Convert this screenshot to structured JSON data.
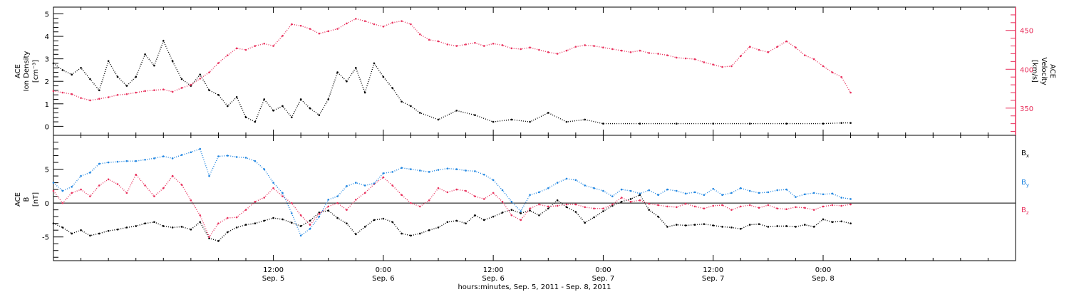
{
  "figure": {
    "xlabel": "hours:minutes, Sep. 5, 2011 - Sep. 8, 2011"
  },
  "chart_data": [
    {
      "type": "scatter",
      "panel": "top",
      "title": "",
      "xlabel": "hours:minutes, Sep. 5, 2011 - Sep. 8, 2011",
      "x_unit": "hours since 2011-09-05 00:00",
      "xlim": [
        -12.0,
        93.0
      ],
      "x_ticks": [
        {
          "value": 12,
          "time": "12:00",
          "date": "Sep. 5"
        },
        {
          "value": 24,
          "time": "0:00",
          "date": "Sep. 6"
        },
        {
          "value": 36,
          "time": "12:00",
          "date": "Sep. 6"
        },
        {
          "value": 48,
          "time": "0:00",
          "date": "Sep. 7"
        },
        {
          "value": 60,
          "time": "12:00",
          "date": "Sep. 7"
        },
        {
          "value": 72,
          "time": "0:00",
          "date": "Sep. 8"
        }
      ],
      "y_left": {
        "label_lines": [
          "ACE",
          "Ion Density",
          "[cm⁻³]"
        ],
        "ylim": [
          -0.4,
          5.3
        ],
        "ticks": [
          0,
          1,
          2,
          3,
          4,
          5
        ],
        "tick_labels": [
          "0",
          "1",
          "2",
          "3",
          "4",
          "5"
        ],
        "color": "#000000"
      },
      "y_right": {
        "label_lines": [
          "ACE",
          "Velocity",
          "[km/s]"
        ],
        "ylim": [
          315,
          480
        ],
        "ticks": [
          350,
          400,
          450
        ],
        "tick_labels": [
          "350",
          "400",
          "450"
        ],
        "color": "#e8305c"
      },
      "series": [
        {
          "color": "#000000",
          "axis": "left",
          "marker": "dot",
          "x": [
            -12.0,
            -11.0,
            -10.0,
            -9.0,
            -8.0,
            -7.0,
            -6.0,
            -5.0,
            -4.0,
            -3.0,
            -2.0,
            -1.0,
            0.0,
            1.0,
            2.0,
            3.0,
            4.0,
            5.0,
            6.0,
            7.0,
            8.0,
            9.0,
            10.0,
            11.0,
            12.0,
            13.0,
            14.0,
            15.0,
            16.0,
            17.0,
            18.0,
            19.0,
            20.0,
            21.0,
            22.0,
            23.0,
            24.0,
            25.0,
            26.0,
            27.0,
            28.0,
            30.0,
            32.0,
            34.0,
            36.0,
            38.0,
            40.0,
            42.0,
            44.0,
            46.0,
            48.0,
            52.0,
            56.0,
            60.0,
            64.0,
            68.0,
            72.0,
            74.0,
            75.0
          ],
          "y": [
            2.8,
            2.5,
            2.3,
            2.6,
            2.1,
            1.6,
            2.9,
            2.2,
            1.8,
            2.2,
            3.2,
            2.7,
            3.8,
            2.9,
            2.1,
            1.8,
            2.3,
            1.6,
            1.4,
            0.9,
            1.3,
            0.4,
            0.2,
            1.2,
            0.7,
            0.9,
            0.4,
            1.2,
            0.8,
            0.5,
            1.2,
            2.4,
            2.0,
            2.6,
            1.5,
            2.8,
            2.2,
            1.7,
            1.1,
            0.9,
            0.6,
            0.3,
            0.7,
            0.5,
            0.2,
            0.3,
            0.2,
            0.6,
            0.2,
            0.3,
            0.12,
            0.12,
            0.12,
            0.12,
            0.12,
            0.12,
            0.12,
            0.15,
            0.15
          ]
        },
        {
          "color": "#e8305c",
          "axis": "right",
          "marker": "dot",
          "x": [
            -12.0,
            -11.0,
            -10.0,
            -9.0,
            -8.0,
            -7.0,
            -6.0,
            -5.0,
            -4.0,
            -3.0,
            -2.0,
            -1.0,
            0.0,
            1.0,
            2.0,
            3.0,
            4.0,
            5.0,
            6.0,
            7.0,
            8.0,
            9.0,
            10.0,
            11.0,
            12.0,
            13.0,
            14.0,
            15.0,
            16.0,
            17.0,
            18.0,
            19.0,
            20.0,
            21.0,
            22.0,
            23.0,
            24.0,
            25.0,
            26.0,
            27.0,
            28.0,
            29.0,
            30.0,
            31.0,
            32.0,
            33.0,
            34.0,
            35.0,
            36.0,
            37.0,
            38.0,
            39.0,
            40.0,
            41.0,
            42.0,
            43.0,
            44.0,
            45.0,
            46.0,
            47.0,
            48.0,
            49.0,
            50.0,
            51.0,
            52.0,
            53.0,
            54.0,
            55.0,
            56.0,
            57.0,
            58.0,
            59.0,
            60.0,
            61.0,
            62.0,
            63.0,
            64.0,
            65.0,
            66.0,
            67.0,
            68.0,
            69.0,
            70.0,
            71.0,
            72.0,
            73.0,
            74.0,
            75.0
          ],
          "y": [
            372,
            370,
            368,
            363,
            360,
            362,
            364,
            367,
            368,
            370,
            372,
            373,
            374,
            371,
            376,
            380,
            388,
            396,
            408,
            418,
            427,
            425,
            430,
            433,
            430,
            443,
            458,
            456,
            452,
            446,
            449,
            452,
            459,
            465,
            462,
            458,
            455,
            460,
            462,
            458,
            445,
            438,
            436,
            432,
            430,
            432,
            434,
            430,
            433,
            431,
            427,
            426,
            428,
            425,
            422,
            420,
            424,
            429,
            431,
            430,
            428,
            426,
            424,
            422,
            424,
            421,
            420,
            418,
            415,
            414,
            413,
            409,
            406,
            403,
            404,
            417,
            429,
            425,
            422,
            429,
            436,
            428,
            418,
            413,
            404,
            396,
            390,
            370
          ]
        }
      ]
    },
    {
      "type": "scatter",
      "panel": "bottom",
      "title": "",
      "xlabel": "hours:minutes, Sep. 5, 2011 - Sep. 8, 2011",
      "x_unit": "hours since 2011-09-05 00:00",
      "xlim": [
        -12.0,
        93.0
      ],
      "y_left": {
        "label_lines": [
          "ACE",
          "B",
          "[nT]"
        ],
        "ylim": [
          -8.5,
          10.0
        ],
        "ticks": [
          -5,
          0,
          5
        ],
        "tick_labels": [
          "-5",
          "0",
          "5"
        ],
        "color": "#000000"
      },
      "legend_position": "right",
      "zero_line": true,
      "series": [
        {
          "name": "Bx",
          "label_base": "B",
          "label_sub": "x",
          "color": "#000000",
          "marker": "dot",
          "x": [
            -12.0,
            -11.0,
            -10.0,
            -9.0,
            -8.0,
            -7.0,
            -6.0,
            -5.0,
            -4.0,
            -3.0,
            -2.0,
            -1.0,
            0.0,
            1.0,
            2.0,
            3.0,
            4.0,
            5.0,
            6.0,
            7.0,
            8.0,
            9.0,
            10.0,
            11.0,
            12.0,
            13.0,
            14.0,
            15.0,
            16.0,
            17.0,
            18.0,
            19.0,
            20.0,
            21.0,
            22.0,
            23.0,
            24.0,
            25.0,
            26.0,
            27.0,
            28.0,
            29.0,
            30.0,
            31.0,
            32.0,
            33.0,
            34.0,
            35.0,
            36.0,
            37.0,
            38.0,
            39.0,
            40.0,
            41.0,
            42.0,
            43.0,
            44.0,
            45.0,
            46.0,
            47.0,
            48.0,
            49.0,
            50.0,
            51.0,
            52.0,
            53.0,
            54.0,
            55.0,
            56.0,
            57.0,
            58.0,
            59.0,
            60.0,
            61.0,
            62.0,
            63.0,
            64.0,
            65.0,
            66.0,
            67.0,
            68.0,
            69.0,
            70.0,
            71.0,
            72.0,
            73.0,
            74.0,
            75.0
          ],
          "y": [
            -3.0,
            -3.6,
            -4.5,
            -4.0,
            -4.8,
            -4.5,
            -4.1,
            -3.9,
            -3.6,
            -3.4,
            -3.0,
            -2.8,
            -3.4,
            -3.6,
            -3.5,
            -3.9,
            -2.8,
            -5.2,
            -5.6,
            -4.3,
            -3.6,
            -3.2,
            -3.0,
            -2.6,
            -2.2,
            -2.4,
            -2.9,
            -3.4,
            -2.6,
            -1.4,
            -1.1,
            -2.2,
            -3.0,
            -4.6,
            -3.5,
            -2.5,
            -2.3,
            -2.8,
            -4.5,
            -4.8,
            -4.5,
            -4.0,
            -3.6,
            -2.8,
            -2.6,
            -3.0,
            -1.8,
            -2.5,
            -2.0,
            -1.4,
            -1.0,
            -1.5,
            -1.1,
            -1.8,
            -0.8,
            0.4,
            -0.6,
            -1.3,
            -2.9,
            -2.1,
            -1.2,
            -0.4,
            0.2,
            0.6,
            1.2,
            -1.0,
            -2.0,
            -3.5,
            -3.2,
            -3.3,
            -3.2,
            -3.1,
            -3.3,
            -3.5,
            -3.6,
            -3.8,
            -3.2,
            -3.1,
            -3.5,
            -3.4,
            -3.4,
            -3.5,
            -3.2,
            -3.5,
            -2.4,
            -2.8,
            -2.7,
            -3.0
          ]
        },
        {
          "name": "By",
          "label_base": "B",
          "label_sub": "y",
          "color": "#1e84e0",
          "marker": "dot",
          "x": [
            -12.0,
            -11.0,
            -10.0,
            -9.0,
            -8.0,
            -7.0,
            -6.0,
            -5.0,
            -4.0,
            -3.0,
            -2.0,
            -1.0,
            0.0,
            1.0,
            2.0,
            3.0,
            4.0,
            5.0,
            6.0,
            7.0,
            8.0,
            9.0,
            10.0,
            11.0,
            12.0,
            13.0,
            14.0,
            15.0,
            16.0,
            17.0,
            18.0,
            19.0,
            20.0,
            21.0,
            22.0,
            23.0,
            24.0,
            25.0,
            26.0,
            27.0,
            28.0,
            29.0,
            30.0,
            31.0,
            32.0,
            33.0,
            34.0,
            35.0,
            36.0,
            37.0,
            38.0,
            39.0,
            40.0,
            41.0,
            42.0,
            43.0,
            44.0,
            45.0,
            46.0,
            47.0,
            48.0,
            49.0,
            50.0,
            51.0,
            52.0,
            53.0,
            54.0,
            55.0,
            56.0,
            57.0,
            58.0,
            59.0,
            60.0,
            61.0,
            62.0,
            63.0,
            64.0,
            65.0,
            66.0,
            67.0,
            68.0,
            69.0,
            70.0,
            71.0,
            72.0,
            73.0,
            74.0,
            75.0
          ],
          "y": [
            3.0,
            1.8,
            2.4,
            4.0,
            4.5,
            5.8,
            6.0,
            6.1,
            6.2,
            6.2,
            6.4,
            6.6,
            6.9,
            6.6,
            7.1,
            7.5,
            8.0,
            4.0,
            6.9,
            7.0,
            6.8,
            6.7,
            6.2,
            5.0,
            3.0,
            1.5,
            -1.5,
            -4.8,
            -3.8,
            -2.0,
            0.5,
            1.0,
            2.5,
            3.0,
            2.6,
            2.9,
            4.4,
            4.6,
            5.2,
            5.0,
            4.8,
            4.6,
            4.9,
            5.1,
            5.0,
            4.8,
            4.7,
            4.2,
            3.4,
            1.9,
            0.2,
            -1.2,
            1.2,
            1.6,
            2.2,
            3.0,
            3.6,
            3.4,
            2.6,
            2.2,
            1.8,
            1.0,
            2.0,
            1.8,
            1.4,
            1.9,
            1.2,
            2.0,
            1.8,
            1.4,
            1.6,
            1.2,
            2.1,
            1.2,
            1.5,
            2.2,
            1.8,
            1.5,
            1.6,
            1.9,
            2.0,
            0.9,
            1.3,
            1.5,
            1.3,
            1.4,
            0.8,
            0.6
          ]
        },
        {
          "name": "Bz",
          "label_base": "B",
          "label_sub": "z",
          "color": "#e8305c",
          "marker": "dot",
          "x": [
            -12.0,
            -11.0,
            -10.0,
            -9.0,
            -8.0,
            -7.0,
            -6.0,
            -5.0,
            -4.0,
            -3.0,
            -2.0,
            -1.0,
            0.0,
            1.0,
            2.0,
            3.0,
            4.0,
            5.0,
            6.0,
            7.0,
            8.0,
            9.0,
            10.0,
            11.0,
            12.0,
            13.0,
            14.0,
            15.0,
            16.0,
            17.0,
            18.0,
            19.0,
            20.0,
            21.0,
            22.0,
            23.0,
            24.0,
            25.0,
            26.0,
            27.0,
            28.0,
            29.0,
            30.0,
            31.0,
            32.0,
            33.0,
            34.0,
            35.0,
            36.0,
            37.0,
            38.0,
            39.0,
            40.0,
            41.0,
            42.0,
            43.0,
            44.0,
            45.0,
            46.0,
            47.0,
            48.0,
            49.0,
            50.0,
            51.0,
            52.0,
            53.0,
            54.0,
            55.0,
            56.0,
            57.0,
            58.0,
            59.0,
            60.0,
            61.0,
            62.0,
            63.0,
            64.0,
            65.0,
            66.0,
            67.0,
            68.0,
            69.0,
            70.0,
            71.0,
            72.0,
            73.0,
            74.0,
            75.0
          ],
          "y": [
            1.8,
            0.0,
            1.5,
            2.0,
            1.0,
            2.6,
            3.5,
            2.8,
            1.5,
            4.2,
            2.6,
            1.0,
            2.2,
            4.0,
            2.7,
            0.4,
            -1.8,
            -5.0,
            -3.0,
            -2.2,
            -2.1,
            -1.0,
            0.2,
            0.8,
            2.2,
            1.0,
            0.0,
            -1.8,
            -3.2,
            -1.6,
            -0.5,
            0.0,
            -1.0,
            0.5,
            1.5,
            2.8,
            3.8,
            2.6,
            1.2,
            0.0,
            -0.5,
            0.4,
            2.2,
            1.6,
            2.0,
            1.8,
            1.0,
            0.6,
            1.5,
            0.2,
            -1.8,
            -2.5,
            -0.8,
            -0.2,
            -0.5,
            -0.4,
            -0.2,
            -0.2,
            -0.6,
            -0.8,
            -0.8,
            -0.2,
            0.8,
            0.2,
            0.4,
            -0.1,
            -0.3,
            -0.5,
            -0.6,
            -0.1,
            -0.5,
            -0.8,
            -0.4,
            -0.3,
            -1.0,
            -0.5,
            -0.3,
            -0.7,
            -0.3,
            -0.8,
            -0.9,
            -0.6,
            -0.7,
            -1.0,
            -0.5,
            -0.3,
            -0.4,
            -0.2
          ]
        }
      ]
    }
  ]
}
